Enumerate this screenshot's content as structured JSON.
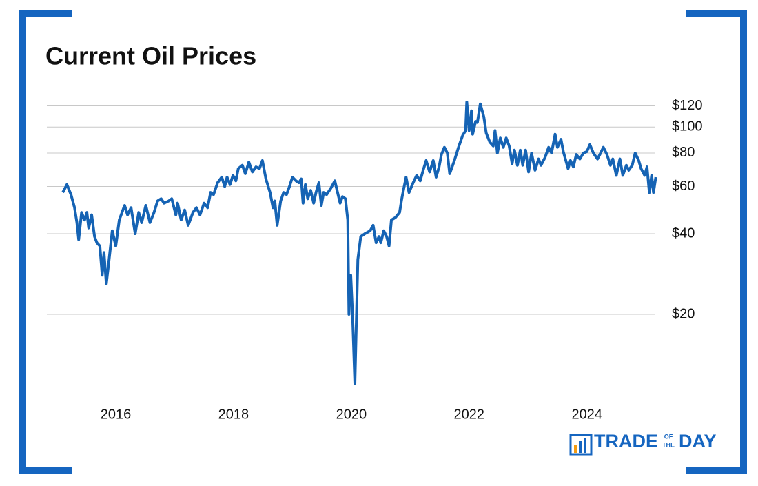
{
  "chart_data": {
    "type": "line",
    "title": "Current Oil Prices",
    "x": [
      2015.1,
      2015.17,
      2015.24,
      2015.3,
      2015.34,
      2015.37,
      2015.42,
      2015.47,
      2015.51,
      2015.54,
      2015.59,
      2015.64,
      2015.68,
      2015.73,
      2015.77,
      2015.8,
      2015.84,
      2015.88,
      2015.94,
      2016.0,
      2016.06,
      2016.15,
      2016.2,
      2016.26,
      2016.33,
      2016.39,
      2016.44,
      2016.51,
      2016.58,
      2016.65,
      2016.71,
      2016.77,
      2016.82,
      2016.9,
      2016.95,
      2017.02,
      2017.05,
      2017.11,
      2017.17,
      2017.23,
      2017.31,
      2017.37,
      2017.43,
      2017.5,
      2017.56,
      2017.61,
      2017.66,
      2017.73,
      2017.8,
      2017.85,
      2017.89,
      2017.94,
      2017.99,
      2018.04,
      2018.08,
      2018.15,
      2018.2,
      2018.26,
      2018.32,
      2018.38,
      2018.44,
      2018.49,
      2018.55,
      2018.62,
      2018.67,
      2018.7,
      2018.74,
      2018.8,
      2018.85,
      2018.9,
      2018.95,
      2019.0,
      2019.06,
      2019.11,
      2019.15,
      2019.18,
      2019.22,
      2019.26,
      2019.31,
      2019.36,
      2019.4,
      2019.45,
      2019.49,
      2019.53,
      2019.58,
      2019.65,
      2019.72,
      2019.75,
      2019.81,
      2019.85,
      2019.9,
      2019.94,
      2019.96,
      2019.99,
      2020.02,
      2020.06,
      2020.11,
      2020.16,
      2020.23,
      2020.32,
      2020.37,
      2020.42,
      2020.47,
      2020.5,
      2020.55,
      2020.6,
      2020.64,
      2020.68,
      2020.75,
      2020.82,
      2020.85,
      2020.87,
      2020.93,
      2020.98,
      2021.05,
      2021.11,
      2021.17,
      2021.22,
      2021.27,
      2021.33,
      2021.39,
      2021.44,
      2021.49,
      2021.53,
      2021.58,
      2021.63,
      2021.67,
      2021.75,
      2021.82,
      2021.89,
      2021.94,
      2021.96,
      2022.0,
      2022.04,
      2022.06,
      2022.11,
      2022.14,
      2022.19,
      2022.25,
      2022.29,
      2022.35,
      2022.41,
      2022.44,
      2022.48,
      2022.53,
      2022.58,
      2022.63,
      2022.68,
      2022.73,
      2022.77,
      2022.82,
      2022.87,
      2022.91,
      2022.96,
      2023.01,
      2023.06,
      2023.12,
      2023.18,
      2023.22,
      2023.29,
      2023.35,
      2023.4,
      2023.46,
      2023.5,
      2023.56,
      2023.6,
      2023.68,
      2023.72,
      2023.77,
      2023.82,
      2023.88,
      2023.94,
      2024.0,
      2024.05,
      2024.11,
      2024.18,
      2024.22,
      2024.28,
      2024.34,
      2024.4,
      2024.44,
      2024.5,
      2024.56,
      2024.61,
      2024.67,
      2024.71,
      2024.77,
      2024.82,
      2024.88,
      2024.92,
      2024.98,
      2025.02,
      2025.06,
      2025.1,
      2025.13,
      2025.17
    ],
    "values": [
      57,
      61,
      56,
      50,
      44,
      38,
      48,
      45,
      48,
      42,
      47,
      39,
      37,
      36,
      28,
      34,
      26,
      31,
      41,
      36,
      45,
      51,
      47,
      50,
      40,
      48,
      44,
      51,
      44,
      48,
      53,
      54,
      52,
      53,
      54,
      47,
      52,
      45,
      49,
      43,
      48,
      50,
      47,
      52,
      50,
      57,
      56,
      62,
      65,
      60,
      65,
      61,
      66,
      63,
      70,
      72,
      67,
      74,
      68,
      71,
      70,
      75,
      64,
      57,
      50,
      53,
      43,
      53,
      57,
      56,
      60,
      65,
      63,
      62,
      64,
      52,
      61,
      54,
      58,
      52,
      57,
      62,
      51,
      57,
      56,
      59,
      63,
      59,
      52,
      55,
      54,
      45,
      20,
      28,
      20,
      11,
      32,
      39,
      40,
      41,
      43,
      37,
      39,
      37,
      41,
      39,
      36,
      45,
      46,
      48,
      53,
      56,
      65,
      57,
      62,
      66,
      63,
      69,
      75,
      68,
      75,
      65,
      71,
      79,
      84,
      80,
      67,
      75,
      84,
      93,
      97,
      124,
      97,
      115,
      94,
      105,
      104,
      122,
      109,
      95,
      88,
      85,
      97,
      80,
      91,
      84,
      91,
      85,
      73,
      82,
      72,
      82,
      72,
      82,
      68,
      80,
      69,
      76,
      72,
      77,
      84,
      80,
      94,
      84,
      90,
      81,
      70,
      75,
      71,
      79,
      76,
      80,
      81,
      86,
      80,
      76,
      79,
      84,
      79,
      72,
      76,
      66,
      76,
      66,
      72,
      69,
      72,
      80,
      75,
      70,
      66,
      71,
      57,
      66,
      57,
      65
    ],
    "color": "#1563b4",
    "log_scale": true,
    "grid": true,
    "xlim": [
      2014.83,
      2025.15
    ],
    "xticks": [
      2016,
      2018,
      2020,
      2022,
      2024
    ],
    "ylim": [
      10,
      130
    ],
    "yticks": [
      {
        "value": 20,
        "label": "$20"
      },
      {
        "value": 40,
        "label": "$40"
      },
      {
        "value": 60,
        "label": "$60"
      },
      {
        "value": 80,
        "label": "$80"
      },
      {
        "value": 100,
        "label": "$100"
      },
      {
        "value": 120,
        "label": "$120"
      }
    ]
  },
  "logo": {
    "parts": [
      "TRADE",
      "OF",
      "THE",
      "DAY"
    ]
  }
}
